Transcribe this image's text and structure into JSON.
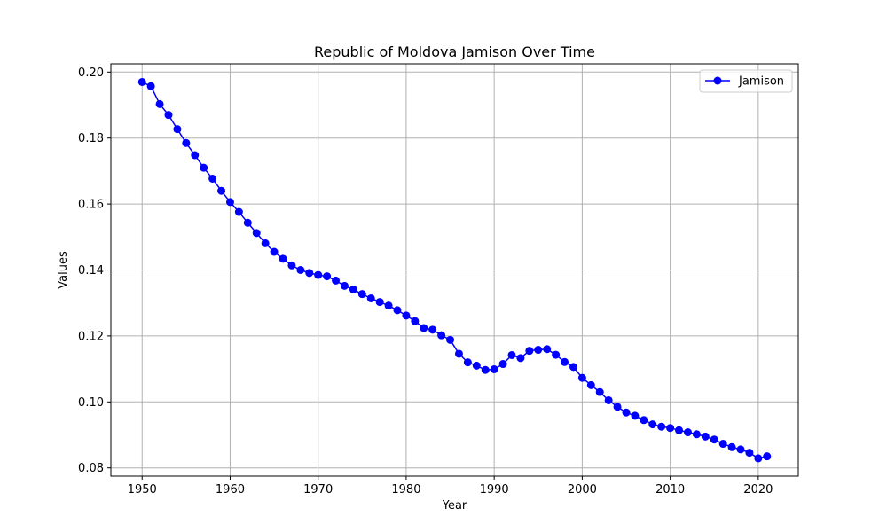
{
  "chart_data": {
    "type": "line",
    "title": "Republic of Moldova Jamison Over Time",
    "xlabel": "Year",
    "ylabel": "Values",
    "xlim": [
      1946.45,
      2024.55
    ],
    "ylim": [
      0.0775,
      0.2025
    ],
    "xticks": [
      1950,
      1960,
      1970,
      1980,
      1990,
      2000,
      2010,
      2020
    ],
    "yticks": [
      0.08,
      0.1,
      0.12,
      0.14,
      0.16,
      0.18,
      0.2
    ],
    "ytick_labels": [
      "0.08",
      "0.10",
      "0.12",
      "0.14",
      "0.16",
      "0.18",
      "0.20"
    ],
    "grid": true,
    "legend_position": "top-right",
    "colors": {
      "series": "#0000ff",
      "grid": "#b0b0b0"
    },
    "x": [
      1950,
      1951,
      1952,
      1953,
      1954,
      1955,
      1956,
      1957,
      1958,
      1959,
      1960,
      1961,
      1962,
      1963,
      1964,
      1965,
      1966,
      1967,
      1968,
      1969,
      1970,
      1971,
      1972,
      1973,
      1974,
      1975,
      1976,
      1977,
      1978,
      1979,
      1980,
      1981,
      1982,
      1983,
      1984,
      1985,
      1986,
      1987,
      1988,
      1989,
      1990,
      1991,
      1992,
      1993,
      1994,
      1995,
      1996,
      1997,
      1998,
      1999,
      2000,
      2001,
      2002,
      2003,
      2004,
      2005,
      2006,
      2007,
      2008,
      2009,
      2010,
      2011,
      2012,
      2013,
      2014,
      2015,
      2016,
      2017,
      2018,
      2019,
      2020,
      2021
    ],
    "series": [
      {
        "name": "Jamison",
        "values": [
          0.197,
          0.1957,
          0.1903,
          0.187,
          0.1827,
          0.1785,
          0.1748,
          0.171,
          0.1677,
          0.164,
          0.1606,
          0.1576,
          0.1543,
          0.1512,
          0.1481,
          0.1455,
          0.1434,
          0.1414,
          0.14,
          0.1391,
          0.1385,
          0.1381,
          0.1368,
          0.1352,
          0.1341,
          0.1327,
          0.1314,
          0.1303,
          0.1292,
          0.1278,
          0.1262,
          0.1245,
          0.1224,
          0.1219,
          0.1202,
          0.1188,
          0.1146,
          0.112,
          0.111,
          0.1097,
          0.1099,
          0.1115,
          0.1142,
          0.1133,
          0.1155,
          0.1158,
          0.116,
          0.1143,
          0.1121,
          0.1106,
          0.1073,
          0.1051,
          0.103,
          0.1005,
          0.0985,
          0.0968,
          0.0958,
          0.0945,
          0.0932,
          0.0925,
          0.0921,
          0.0914,
          0.0908,
          0.0902,
          0.0895,
          0.0886,
          0.0873,
          0.0863,
          0.0856,
          0.0846,
          0.0829,
          0.0835
        ]
      }
    ]
  }
}
